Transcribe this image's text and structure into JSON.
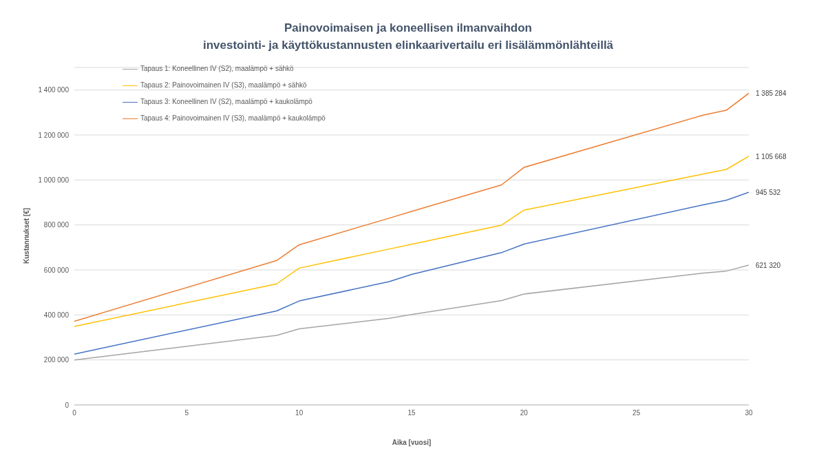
{
  "chart_data": {
    "type": "line",
    "title": "Painovoimaisen ja koneellisen ilmanvaihdon\ninvestointi- ja käyttökustannusten elinkaarivertailu eri lisälämmönlähteillä",
    "xlabel": "Aika [vuosi]",
    "ylabel": "Kustannukset [€]",
    "x": [
      0,
      9,
      10,
      14,
      15,
      19,
      20,
      28,
      29,
      30
    ],
    "series": [
      {
        "name": "Tapaus 1: Koneellinen IV (S2), maalämpö + sähkö",
        "color": "#a5a5a5",
        "values": [
          200000,
          309000,
          338000,
          385000,
          402000,
          464000,
          493000,
          586000,
          595000,
          621320
        ],
        "value_labels": [
          null,
          null,
          null,
          null,
          null,
          null,
          null,
          null,
          null,
          "621 320"
        ]
      },
      {
        "name": "Tapaus 2: Painovoimainen IV (S3), maalämpö + sähkö",
        "color": "#ffc000",
        "values": [
          349000,
          538000,
          608000,
          693000,
          714000,
          799000,
          866000,
          1027000,
          1047000,
          1105668
        ],
        "value_labels": [
          null,
          null,
          null,
          null,
          null,
          null,
          null,
          null,
          null,
          "1 105 668"
        ]
      },
      {
        "name": "Tapaus 3: Koneellinen IV (S2), maalämpö + kaukolämpö",
        "color": "#4472c4",
        "values": [
          226000,
          418000,
          462000,
          548000,
          580000,
          677000,
          715000,
          890000,
          910000,
          945532
        ],
        "value_labels": [
          null,
          null,
          null,
          null,
          null,
          null,
          null,
          null,
          null,
          "945 532"
        ]
      },
      {
        "name": "Tapaus 4: Painovoimainen IV (S3), maalämpö + kaukolämpö",
        "color": "#ed7d31",
        "values": [
          372000,
          642000,
          712000,
          830000,
          860000,
          978000,
          1056000,
          1289000,
          1310000,
          1385284
        ],
        "value_labels": [
          null,
          null,
          null,
          null,
          null,
          null,
          null,
          null,
          null,
          "1 385 284"
        ]
      }
    ],
    "xlim": [
      0,
      30
    ],
    "xticks": [
      0,
      5,
      10,
      15,
      20,
      25,
      30
    ],
    "ylim": [
      0,
      1500000
    ],
    "yticks": [
      0,
      {
        "value": 200000,
        "label": "200 000"
      },
      {
        "value": 400000,
        "label": "400 000"
      },
      {
        "value": 600000,
        "label": "600 000"
      },
      {
        "value": 800000,
        "label": "800 000"
      },
      {
        "value": 1000000,
        "label": "1 000 000"
      },
      {
        "value": 1200000,
        "label": "1 200 000"
      },
      {
        "value": 1400000,
        "label": "1 400 000"
      }
    ],
    "grid": "y",
    "legend": "top left",
    "marker": "none",
    "line_style": "solid"
  }
}
